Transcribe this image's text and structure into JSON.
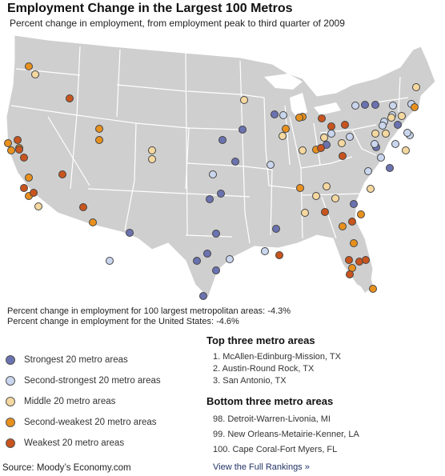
{
  "header": {
    "title": "Employment Change in the Largest 100 Metros",
    "subtitle": "Percent change in employment, from employment peak to third quarter of 2009"
  },
  "colors": {
    "land": "#cfcfcf",
    "border": "#ffffff",
    "strongest": "#6b72b0",
    "second_strongest": "#c9d6ee",
    "middle": "#f5d8a0",
    "second_weakest": "#e8901e",
    "weakest": "#c8541e"
  },
  "stats": {
    "metro_line": "Percent change in employment for 100 largest metropolitan areas: -4.3%",
    "us_line": "Percent change in employment for the United States: -4.6%"
  },
  "legend": {
    "items": [
      {
        "label": "Strongest 20 metro areas",
        "color": "#6b72b0"
      },
      {
        "label": "Second-strongest 20 metro areas",
        "color": "#c9d6ee"
      },
      {
        "label": "Middle 20 metro areas",
        "color": "#f5d8a0"
      },
      {
        "label": "Second-weakest 20 metro areas",
        "color": "#e8901e"
      },
      {
        "label": "Weakest 20 metro areas",
        "color": "#c8541e"
      }
    ]
  },
  "rankings": {
    "top_heading": "Top three metro areas",
    "top": [
      "1. McAllen-Edinburg-Mission, TX",
      "2. Austin-Round Rock, TX",
      "3. San Antonio, TX"
    ],
    "bottom_heading": "Bottom three metro areas",
    "bottom": [
      "98. Detroit-Warren-Livonia, MI",
      "99. New Orleans-Metairie-Kenner, LA",
      "100. Cape Coral-Fort Myers, FL"
    ],
    "link_label": "View the Full Rankings »"
  },
  "source": "Source: Moody’s Economy.com"
}
